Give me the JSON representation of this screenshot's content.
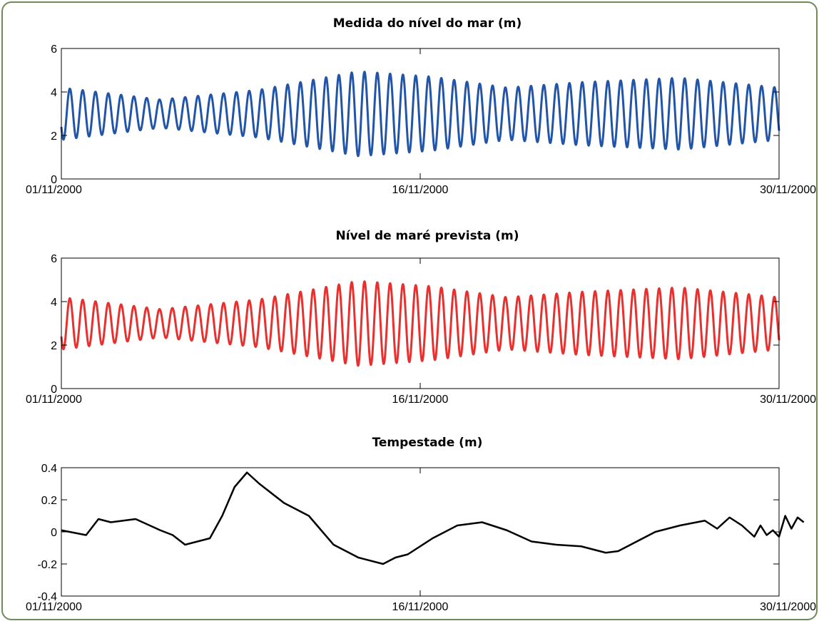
{
  "chart_data": [
    {
      "type": "line",
      "title": "Medida do nível do mar (m)",
      "xlabel": "",
      "ylabel": "",
      "ylim": [
        0,
        6
      ],
      "yticks": [
        "0",
        "2",
        "4",
        "6"
      ],
      "xticks": [
        "01/11/2000",
        "16/11/2000",
        "30/11/2000"
      ],
      "grid": false,
      "color": "#2255a8",
      "series": [
        {
          "x_start": "2000-11-01",
          "x_end": "2000-11-30",
          "description_of_values": "semidiurnal tide, mean ~3 m",
          "amplitude_envelope": [
            {
              "x": "01/11",
              "amp": 1.2
            },
            {
              "x": "05/11",
              "amp": 0.65
            },
            {
              "x": "09/11",
              "amp": 1.1
            },
            {
              "x": "13/11",
              "amp": 1.95
            },
            {
              "x": "16/11",
              "amp": 1.7
            },
            {
              "x": "19/11",
              "amp": 1.2
            },
            {
              "x": "22/11",
              "amp": 1.45
            },
            {
              "x": "26/11",
              "amp": 1.65
            },
            {
              "x": "30/11",
              "amp": 1.2
            }
          ],
          "mean": 3.0
        }
      ]
    },
    {
      "type": "line",
      "title": "Nível de maré prevista (m)",
      "xlabel": "",
      "ylabel": "",
      "ylim": [
        0,
        6
      ],
      "yticks": [
        "0",
        "2",
        "4",
        "6"
      ],
      "xticks": [
        "01/11/2000",
        "16/11/2000",
        "30/11/2000"
      ],
      "grid": false,
      "color": "#e8302f",
      "series": [
        {
          "x_start": "2000-11-01",
          "x_end": "2000-11-30",
          "amplitude_envelope": [
            {
              "x": "01/11",
              "amp": 1.2
            },
            {
              "x": "05/11",
              "amp": 0.65
            },
            {
              "x": "09/11",
              "amp": 1.1
            },
            {
              "x": "13/11",
              "amp": 1.95
            },
            {
              "x": "16/11",
              "amp": 1.7
            },
            {
              "x": "19/11",
              "amp": 1.2
            },
            {
              "x": "22/11",
              "amp": 1.45
            },
            {
              "x": "26/11",
              "amp": 1.65
            },
            {
              "x": "30/11",
              "amp": 1.2
            }
          ],
          "mean": 3.0
        }
      ]
    },
    {
      "type": "line",
      "title": "Tempestade (m)",
      "xlabel": "",
      "ylabel": "",
      "ylim": [
        -0.4,
        0.4
      ],
      "yticks": [
        "-0.4",
        "-0.2",
        "0",
        "0.2",
        "0.4"
      ],
      "xticks": [
        "01/11/2000",
        "16/11/2000",
        "30/11/2000"
      ],
      "grid": false,
      "color": "#000000",
      "series": [
        {
          "points": [
            {
              "x": "01/11",
              "y": 0.01
            },
            {
              "x": "02/11",
              "y": -0.02
            },
            {
              "x": "02/11 12h",
              "y": 0.08
            },
            {
              "x": "03/11",
              "y": 0.06
            },
            {
              "x": "04/11",
              "y": 0.08
            },
            {
              "x": "05/11",
              "y": 0.01
            },
            {
              "x": "05/11 12h",
              "y": -0.02
            },
            {
              "x": "06/11",
              "y": -0.08
            },
            {
              "x": "07/11",
              "y": -0.04
            },
            {
              "x": "07/11 12h",
              "y": 0.1
            },
            {
              "x": "08/11",
              "y": 0.28
            },
            {
              "x": "08/11 12h",
              "y": 0.37
            },
            {
              "x": "09/11",
              "y": 0.3
            },
            {
              "x": "10/11",
              "y": 0.18
            },
            {
              "x": "11/11",
              "y": 0.1
            },
            {
              "x": "11/11 12h",
              "y": 0.01
            },
            {
              "x": "12/11",
              "y": -0.08
            },
            {
              "x": "13/11",
              "y": -0.16
            },
            {
              "x": "14/11",
              "y": -0.2
            },
            {
              "x": "14/11 12h",
              "y": -0.16
            },
            {
              "x": "15/11",
              "y": -0.14
            },
            {
              "x": "16/11",
              "y": -0.04
            },
            {
              "x": "17/11",
              "y": 0.04
            },
            {
              "x": "18/11",
              "y": 0.06
            },
            {
              "x": "19/11",
              "y": 0.01
            },
            {
              "x": "20/11",
              "y": -0.06
            },
            {
              "x": "21/11",
              "y": -0.08
            },
            {
              "x": "22/11",
              "y": -0.09
            },
            {
              "x": "23/11",
              "y": -0.13
            },
            {
              "x": "23/11 12h",
              "y": -0.12
            },
            {
              "x": "24/11",
              "y": -0.08
            },
            {
              "x": "25/11",
              "y": 0.0
            },
            {
              "x": "26/11",
              "y": 0.04
            },
            {
              "x": "27/11",
              "y": 0.07
            },
            {
              "x": "27/11 12h",
              "y": 0.02
            },
            {
              "x": "28/11",
              "y": 0.09
            },
            {
              "x": "28/11 12h",
              "y": 0.04
            },
            {
              "x": "29/11",
              "y": -0.03
            },
            {
              "x": "29/11 6h",
              "y": 0.04
            },
            {
              "x": "29/11 12h",
              "y": -0.02
            },
            {
              "x": "29/11 18h",
              "y": 0.01
            },
            {
              "x": "30/11",
              "y": -0.03
            },
            {
              "x": "30/11 6h",
              "y": 0.1
            },
            {
              "x": "30/11 12h",
              "y": 0.02
            },
            {
              "x": "30/11 18h",
              "y": 0.09
            },
            {
              "x": "30/11 24h",
              "y": 0.06
            }
          ]
        }
      ]
    }
  ]
}
